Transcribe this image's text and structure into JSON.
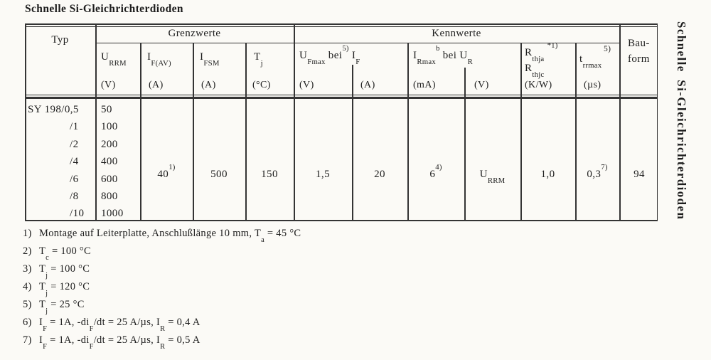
{
  "colors": {
    "paper": "#fbfaf6",
    "ink": "#1d1d1d",
    "line": "#343434"
  },
  "page": {
    "title": "Schnelle Si-Gleichrichterdioden",
    "sidebar_title": "Schnelle Si-Gleichrichterdioden"
  },
  "table": {
    "header": {
      "typ": "Typ",
      "grenzwerte": "Grenzwerte",
      "kennwerte": "Kennwerte",
      "bauform_line1": "Bau-",
      "bauform_line2": "form",
      "urrm": {
        "sym": "U_{RRM}",
        "unit": "(V)"
      },
      "ifav": {
        "sym": "I_{F(AV)}",
        "unit": "(A)"
      },
      "ifsm": {
        "sym": "I_{FSM}",
        "unit": "(A)"
      },
      "tj": {
        "sym": "T_{j}",
        "unit": "(°C)"
      },
      "ufmax_group": {
        "sym": "U_{Fmax} bei^{5)} I_{F}",
        "unit_v": "(V)",
        "unit_a": "(A)"
      },
      "irmax_group": {
        "sym": "I_{Rmax}^{b} bei U_{R}",
        "unit_ma": "(mA)",
        "unit_v": "(V)"
      },
      "rth": {
        "line1": "R_{thja} ^{*1)}",
        "line2": "R_{thjc}",
        "unit": "(K/W)"
      },
      "trr": {
        "sym": "t_{rrmax}",
        "sup": "5)",
        "unit": "(µs)"
      }
    },
    "rows": [
      {
        "typ": "SY 198/0,5",
        "urrm": "50"
      },
      {
        "typ": "/1",
        "urrm": "100"
      },
      {
        "typ": "/2",
        "urrm": "200"
      },
      {
        "typ": "/4",
        "urrm": "400"
      },
      {
        "typ": "/6",
        "urrm": "600"
      },
      {
        "typ": "/8",
        "urrm": "800"
      },
      {
        "typ": "/10",
        "urrm": "1000"
      }
    ],
    "merged": {
      "ifav": "40^{1)}",
      "ifsm": "500",
      "tj": "150",
      "ufmax": "1,5",
      "if_a": "20",
      "irmax": "6^{4)}",
      "ur": "U_{RRM}",
      "rth": "1,0",
      "trr": "0,3^{7)}",
      "bauform": "94"
    }
  },
  "footnotes": [
    {
      "num": "1)",
      "text": "Montage auf Leiterplatte, Anschlußlänge 10 mm, T_{a} = 45 °C"
    },
    {
      "num": "2)",
      "text": "T_{c} = 100 °C"
    },
    {
      "num": "3)",
      "text": "T_{j} = 100 °C"
    },
    {
      "num": "4)",
      "text": "T_{j} = 120 °C"
    },
    {
      "num": "5)",
      "text": "T_{j} = 25 °C"
    },
    {
      "num": "6)",
      "text": "I_{F} = 1A, -di_{F}/dt = 25 A/µs, I_{R} = 0,4 A"
    },
    {
      "num": "7)",
      "text": "I_{F} = 1A, -di_{F}/dt = 25 A/µs, I_{R} = 0,5 A"
    }
  ]
}
